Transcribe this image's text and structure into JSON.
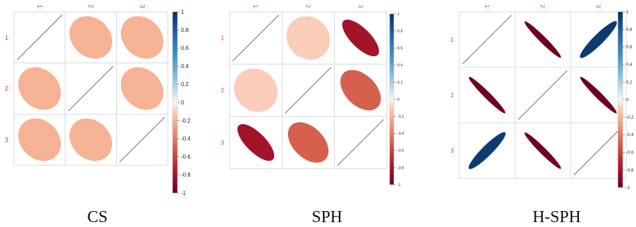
{
  "chart_data": [
    {
      "type": "heatmap",
      "caption": "CS",
      "row_labels": [
        "1",
        "2",
        "3"
      ],
      "col_labels": [
        "1",
        "2",
        "3"
      ],
      "matrix": [
        [
          1,
          -0.2,
          -0.2
        ],
        [
          -0.2,
          1,
          -0.2
        ],
        [
          -0.2,
          -0.2,
          1
        ]
      ],
      "colorbar": {
        "min": -1,
        "max": 1,
        "ticks": [
          "1",
          "0.8",
          "0.6",
          "0.4",
          "0.2",
          "0",
          "-0.2",
          "-0.4",
          "-0.6",
          "-0.8",
          "-1"
        ]
      }
    },
    {
      "type": "heatmap",
      "caption": "SPH",
      "row_labels": [
        "1",
        "2",
        "3"
      ],
      "col_labels": [
        "1",
        "2",
        "3"
      ],
      "matrix": [
        [
          1,
          -0.1,
          -0.8
        ],
        [
          -0.1,
          1,
          -0.5
        ],
        [
          -0.8,
          -0.5,
          1
        ]
      ],
      "colorbar": {
        "min": -1,
        "max": 1,
        "ticks": [
          "1",
          "0.8",
          "0.6",
          "0.4",
          "0.2",
          "0",
          "-0.2",
          "-0.4",
          "-0.6",
          "-0.8",
          "-1"
        ]
      }
    },
    {
      "type": "heatmap",
      "caption": "H-SPH",
      "row_labels": [
        "1",
        "2",
        "3"
      ],
      "col_labels": [
        "1",
        "2",
        "3"
      ],
      "matrix": [
        [
          1,
          -0.98,
          0.95
        ],
        [
          -0.98,
          1,
          -0.98
        ],
        [
          0.95,
          -0.98,
          1
        ]
      ],
      "colorbar": {
        "min": -1,
        "max": 1,
        "ticks": [
          "1",
          "0.8",
          "0.6",
          "0.4",
          "0.2",
          "0",
          "-0.2",
          "-0.4",
          "-0.6",
          "-0.8",
          "-1"
        ]
      }
    }
  ]
}
